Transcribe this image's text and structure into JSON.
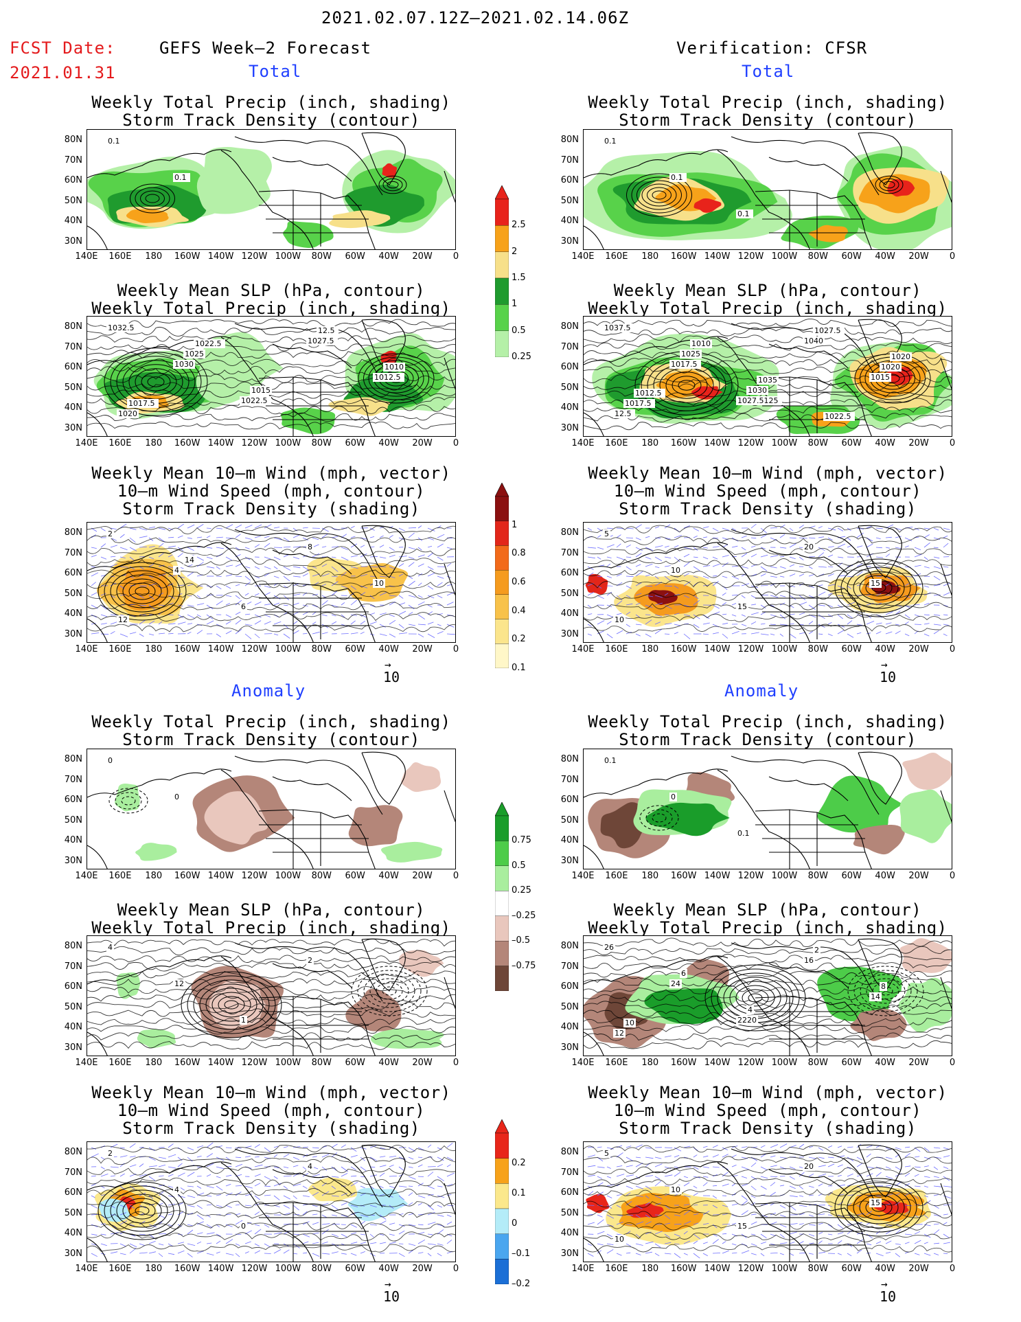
{
  "header": {
    "date_range": "2021.02.07.12Z–2021.02.14.06Z",
    "fcst_date_label": "FCST Date:",
    "fcst_date": "2021.01.31",
    "left_title": "GEFS Week–2 Forecast",
    "right_title": "Verification: CFSR"
  },
  "sections": {
    "total": "Total",
    "anomaly": "Anomaly"
  },
  "panel_titles": {
    "precip_storm": [
      "Weekly Total Precip (inch, shading)",
      "Storm Track Density (contour)"
    ],
    "slp_precip": [
      "Weekly Mean SLP (hPa, contour)",
      "Weekly Total Precip (inch, shading)"
    ],
    "wind_storm": [
      "Weekly Mean 10–m Wind (mph, vector)",
      "10–m Wind Speed (mph, contour)",
      "Storm Track Density (shading)"
    ]
  },
  "axes": {
    "lat_labels": [
      "80N",
      "70N",
      "60N",
      "50N",
      "40N",
      "30N"
    ],
    "lon_labels": [
      "140E",
      "160E",
      "180",
      "160W",
      "140W",
      "120W",
      "100W",
      "80W",
      "60W",
      "40W",
      "20W",
      "0"
    ]
  },
  "vector_ref": "10",
  "colorbars": {
    "precip_total": {
      "labels": [
        "2.5",
        "2",
        "1.5",
        "1",
        "0.5",
        "0.25"
      ],
      "colors": [
        "#e8231b",
        "#f7a21a",
        "#f7e08a",
        "#1f9b2e",
        "#58d24a",
        "#b5f0a8"
      ]
    },
    "storm_total": {
      "labels": [
        "1",
        "0.8",
        "0.6",
        "0.4",
        "0.2",
        "0.1"
      ],
      "colors": [
        "#8b1010",
        "#e2261a",
        "#f26a1a",
        "#f59b1e",
        "#f8c24a",
        "#fbe58c",
        "#fff7c8"
      ]
    },
    "precip_anom": {
      "labels": [
        "0.75",
        "0.5",
        "0.25",
        "–0.25",
        "–0.5",
        "–0.75"
      ],
      "colors": [
        "#1a9d2a",
        "#4dcc49",
        "#a9ee9e",
        "#ffffff",
        "#e9c7bd",
        "#b48679",
        "#6e4638"
      ]
    },
    "storm_anom": {
      "labels": [
        "0.2",
        "0.1",
        "0",
        "–0.1",
        "–0.2"
      ],
      "colors": [
        "#e8261a",
        "#f7a21a",
        "#fbe88c",
        "#b4ecf8",
        "#4aa6ef",
        "#1b6fd6"
      ]
    }
  },
  "contour_labels": {
    "p1": [
      "0.1",
      "0.1"
    ],
    "p2": [
      "0.1",
      "0.1",
      "0.1"
    ],
    "s1": [
      "1032.5",
      "1030",
      "1022.5",
      "1027.5",
      "1012.5",
      "1020",
      "1025",
      "1015",
      "12.5",
      "1010",
      "1017.5",
      "1022.5"
    ],
    "s2": [
      "1037.5",
      "1017.5",
      "1027.5125",
      "1040",
      "1015",
      "12.5",
      "1025",
      "1030",
      "1027.5",
      "1020",
      "1017.5",
      "1010",
      "1035",
      "1022.5",
      "1020",
      "1012.5"
    ],
    "w1": [
      "2",
      "4",
      "6",
      "8",
      "10",
      "12",
      "14"
    ],
    "w2": [
      "5",
      "10",
      "15",
      "20",
      "15",
      "10"
    ],
    "a1": [
      "0",
      "0"
    ],
    "a2": [
      "0.1",
      "0",
      "0.1"
    ],
    "b1": [
      "4",
      "12",
      "1",
      "2"
    ],
    "b2": [
      "26",
      "24",
      "2220",
      "16",
      "14",
      "12",
      "6",
      "4",
      "2",
      "8",
      "10"
    ],
    "c1": [
      "2",
      "4",
      "0",
      "4"
    ],
    "c2": [
      "5",
      "10",
      "15",
      "20",
      "15",
      "10"
    ]
  }
}
